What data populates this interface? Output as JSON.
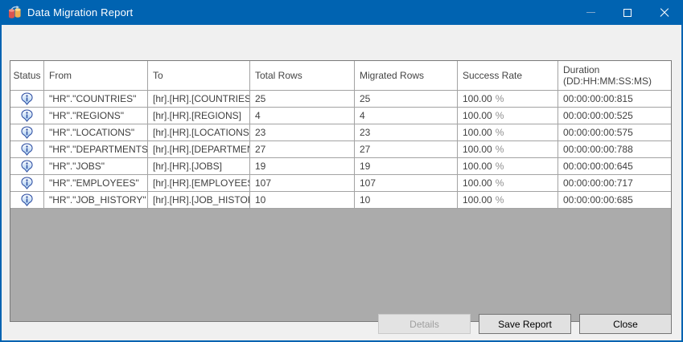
{
  "window": {
    "title": "Data Migration Report",
    "controls": {
      "minimize_icon": "minimize-icon",
      "maximize_icon": "maximize-icon",
      "close_icon": "close-icon"
    }
  },
  "colors": {
    "titlebar": "#0063B1",
    "grid_empty_area": "#ABABAB",
    "client_background": "#F0F0F0",
    "info_icon_blue": "#2B4BA0"
  },
  "table": {
    "headers": {
      "status": "Status",
      "from": "From",
      "to": "To",
      "total": "Total Rows",
      "migrated": "Migrated Rows",
      "success": "Success Rate",
      "duration_line1": "Duration",
      "duration_line2": "(DD:HH:MM:SS:MS)"
    },
    "rows": [
      {
        "status_icon": "info-icon",
        "from": "\"HR\".\"COUNTRIES\"",
        "to": "[hr].[HR].[COUNTRIES]",
        "total": "25",
        "migrated": "25",
        "success_value": "100.00",
        "success_unit": "%",
        "duration": "00:00:00:00:815"
      },
      {
        "status_icon": "info-icon",
        "from": "\"HR\".\"REGIONS\"",
        "to": "[hr].[HR].[REGIONS]",
        "total": "4",
        "migrated": "4",
        "success_value": "100.00",
        "success_unit": "%",
        "duration": "00:00:00:00:525"
      },
      {
        "status_icon": "info-icon",
        "from": "\"HR\".\"LOCATIONS\"",
        "to": "[hr].[HR].[LOCATIONS]",
        "total": "23",
        "migrated": "23",
        "success_value": "100.00",
        "success_unit": "%",
        "duration": "00:00:00:00:575"
      },
      {
        "status_icon": "info-icon",
        "from": "\"HR\".\"DEPARTMENTS\"",
        "to": "[hr].[HR].[DEPARTMENTS]",
        "total": "27",
        "migrated": "27",
        "success_value": "100.00",
        "success_unit": "%",
        "duration": "00:00:00:00:788"
      },
      {
        "status_icon": "info-icon",
        "from": "\"HR\".\"JOBS\"",
        "to": "[hr].[HR].[JOBS]",
        "total": "19",
        "migrated": "19",
        "success_value": "100.00",
        "success_unit": "%",
        "duration": "00:00:00:00:645"
      },
      {
        "status_icon": "info-icon",
        "from": "\"HR\".\"EMPLOYEES\"",
        "to": "[hr].[HR].[EMPLOYEES]",
        "total": "107",
        "migrated": "107",
        "success_value": "100.00",
        "success_unit": "%",
        "duration": "00:00:00:00:717"
      },
      {
        "status_icon": "info-icon",
        "from": "\"HR\".\"JOB_HISTORY\"",
        "to": "[hr].[HR].[JOB_HISTORY]",
        "total": "10",
        "migrated": "10",
        "success_value": "100.00",
        "success_unit": "%",
        "duration": "00:00:00:00:685"
      }
    ]
  },
  "buttons": {
    "details": "Details",
    "save_report": "Save Report",
    "close": "Close"
  }
}
